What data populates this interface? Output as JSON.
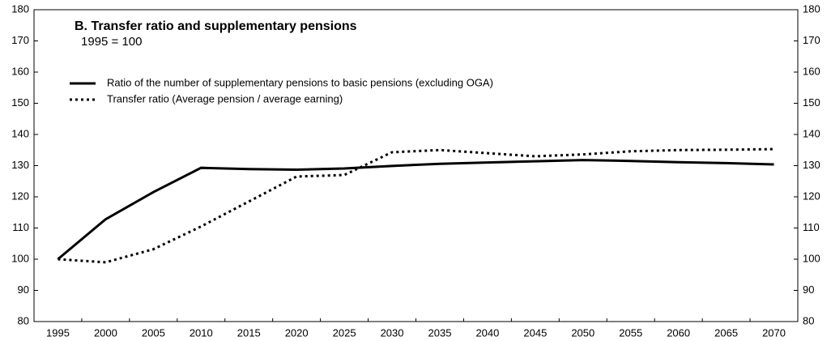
{
  "chart_data": {
    "type": "line",
    "title": "B. Transfer ratio and supplementary pensions",
    "subtitle": "1995 = 100",
    "categories": [
      "1995",
      "2000",
      "2005",
      "2010",
      "2015",
      "2020",
      "2025",
      "2030",
      "2035",
      "2040",
      "2045",
      "2050",
      "2055",
      "2060",
      "2065",
      "2070"
    ],
    "series": [
      {
        "name": "Ratio of the number of supplementary pensions to basic pensions (excluding OGA)",
        "color": "#000000",
        "style": "solid",
        "values": [
          100,
          112.8,
          121.5,
          129.3,
          128.9,
          128.7,
          129.1,
          129.9,
          130.6,
          131,
          131.4,
          131.8,
          131.5,
          131.1,
          130.8,
          130.4
        ]
      },
      {
        "name": "Transfer ratio (Average pension / average earning)",
        "color": "#000000",
        "style": "dotted",
        "values": [
          100,
          99,
          103.2,
          110.5,
          118.5,
          126.5,
          127,
          134.3,
          135,
          134,
          133,
          133.6,
          134.6,
          135,
          135.1,
          135.3
        ]
      }
    ],
    "ylim": [
      80,
      180
    ],
    "yticks": [
      80,
      90,
      100,
      110,
      120,
      130,
      140,
      150,
      160,
      170,
      180
    ],
    "y2lim": [
      80,
      180
    ],
    "y2ticks": [
      80,
      90,
      100,
      110,
      120,
      130,
      140,
      150,
      160,
      170,
      180
    ],
    "legend": "top-left",
    "grid": false
  }
}
